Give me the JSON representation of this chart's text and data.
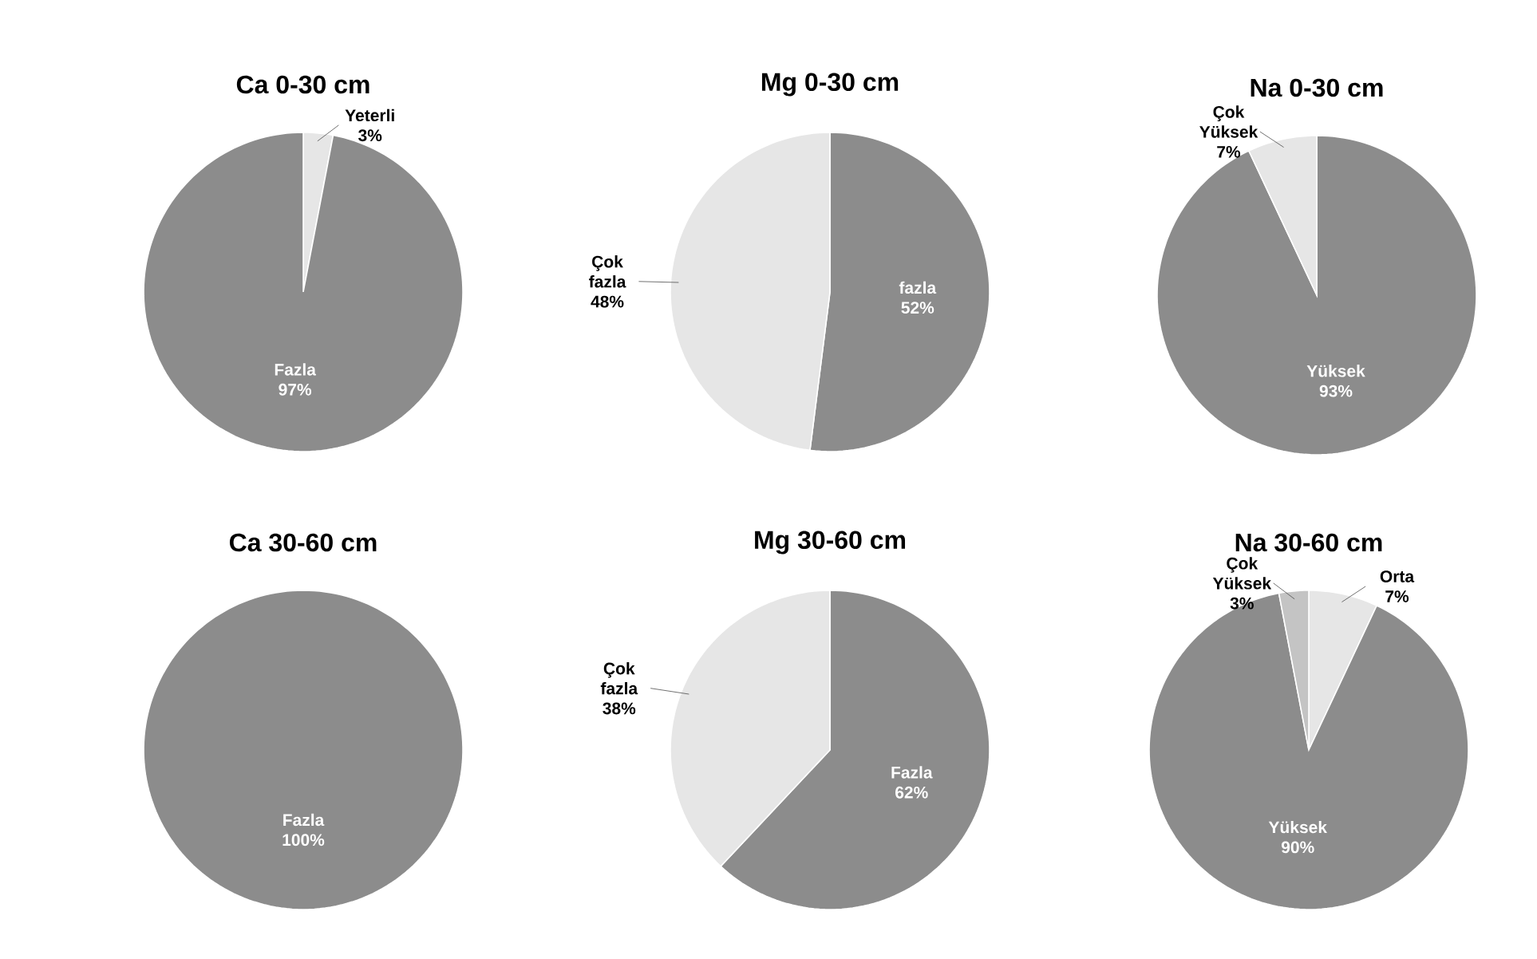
{
  "chart_data": [
    {
      "type": "pie",
      "title": "Ca 0-30 cm",
      "categories": [
        "Yeterli",
        "Fazla"
      ],
      "values": [
        3,
        97
      ],
      "colors": [
        "#e6e6e6",
        "#8c8c8c"
      ],
      "value_labels": [
        "3%",
        "97%"
      ]
    },
    {
      "type": "pie",
      "title": "Mg 0-30 cm",
      "categories": [
        "fazla",
        "Çok fazla"
      ],
      "values": [
        52,
        48
      ],
      "colors": [
        "#8c8c8c",
        "#e6e6e6"
      ],
      "value_labels": [
        "52%",
        "48%"
      ]
    },
    {
      "type": "pie",
      "title": "Na 0-30 cm",
      "categories": [
        "Yüksek",
        "Çok Yüksek"
      ],
      "values": [
        93,
        7
      ],
      "colors": [
        "#8c8c8c",
        "#e6e6e6"
      ],
      "value_labels": [
        "93%",
        "7%"
      ]
    },
    {
      "type": "pie",
      "title": "Ca 30-60 cm",
      "categories": [
        "Fazla"
      ],
      "values": [
        100
      ],
      "colors": [
        "#8c8c8c"
      ],
      "value_labels": [
        "100%"
      ]
    },
    {
      "type": "pie",
      "title": "Mg 30-60 cm",
      "categories": [
        "Fazla",
        "Çok fazla"
      ],
      "values": [
        62,
        38
      ],
      "colors": [
        "#8c8c8c",
        "#e6e6e6"
      ],
      "value_labels": [
        "62%",
        "38%"
      ]
    },
    {
      "type": "pie",
      "title": "Na 30-60 cm",
      "categories": [
        "Orta",
        "Yüksek",
        "Çok Yüksek"
      ],
      "values": [
        7,
        90,
        3
      ],
      "colors": [
        "#e6e6e6",
        "#8c8c8c",
        "#c4c4c4"
      ],
      "value_labels": [
        "7%",
        "90%",
        "3%"
      ]
    }
  ]
}
